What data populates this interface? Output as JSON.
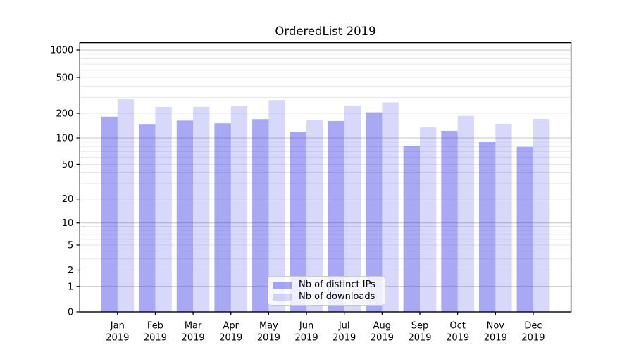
{
  "title": "OrderedList 2019",
  "colors": {
    "ips_bar": "rgba(62,62,230,0.45)",
    "downloads_bar": "rgba(62,62,230,0.20)",
    "major_grid": "#c6c6c6",
    "minor_grid": "#e6e6e6",
    "spine": "#000000"
  },
  "chart_data": {
    "type": "bar",
    "title": "OrderedList 2019",
    "xlabel": "",
    "ylabel": "",
    "y_scale": "symlog",
    "ylim": [
      0,
      1200
    ],
    "grid": true,
    "legend_position": "lower center",
    "categories": [
      "Jan 2019",
      "Feb 2019",
      "Mar 2019",
      "Apr 2019",
      "May 2019",
      "Jun 2019",
      "Jul 2019",
      "Aug 2019",
      "Sep 2019",
      "Oct 2019",
      "Nov 2019",
      "Dec 2019"
    ],
    "y_ticks": [
      0,
      1,
      2,
      5,
      10,
      20,
      50,
      100,
      200,
      500,
      1000
    ],
    "series": [
      {
        "name": "Nb of distinct IPs",
        "color": "rgba(62,62,230,0.45)",
        "values": [
          182,
          148,
          163,
          151,
          170,
          119,
          161,
          205,
          81,
          122,
          91,
          79
        ]
      },
      {
        "name": "Nb of downloads",
        "color": "rgba(62,62,230,0.20)",
        "values": [
          286,
          235,
          236,
          239,
          280,
          166,
          244,
          264,
          135,
          186,
          149,
          171
        ]
      }
    ]
  }
}
